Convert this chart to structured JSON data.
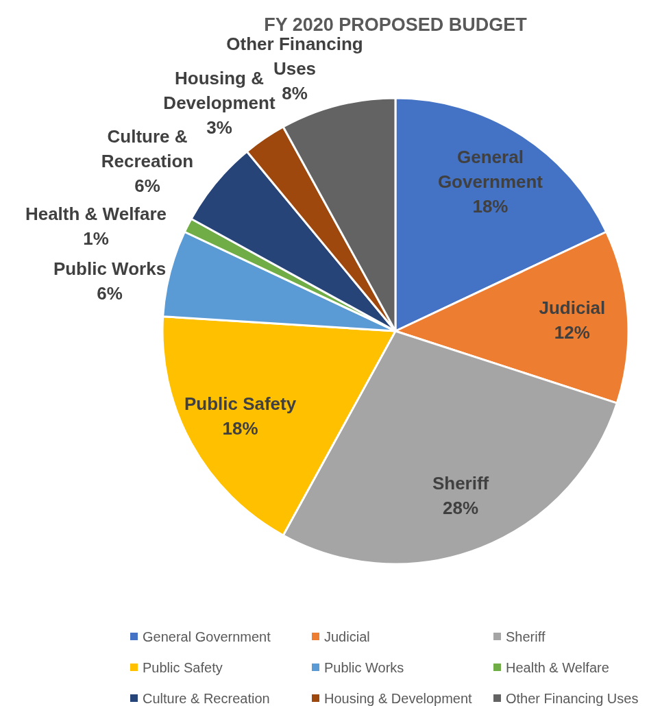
{
  "chart_data": {
    "type": "pie",
    "title": "FY 2020 PROPOSED BUDGET",
    "categories": [
      "General Government",
      "Judicial",
      "Sheriff",
      "Public Safety",
      "Public Works",
      "Health & Welfare",
      "Culture & Recreation",
      "Housing & Development",
      "Other Financing Uses"
    ],
    "values": [
      18,
      12,
      28,
      18,
      6,
      1,
      6,
      3,
      8
    ],
    "colors": [
      "#4472c4",
      "#ed7d31",
      "#a5a5a5",
      "#ffc000",
      "#5b9bd5",
      "#70ad47",
      "#264478",
      "#9e480e",
      "#636363"
    ],
    "value_labels": [
      "18%",
      "12%",
      "28%",
      "18%",
      "6%",
      "1%",
      "6%",
      "3%",
      "8%"
    ],
    "legend": "bottom"
  }
}
